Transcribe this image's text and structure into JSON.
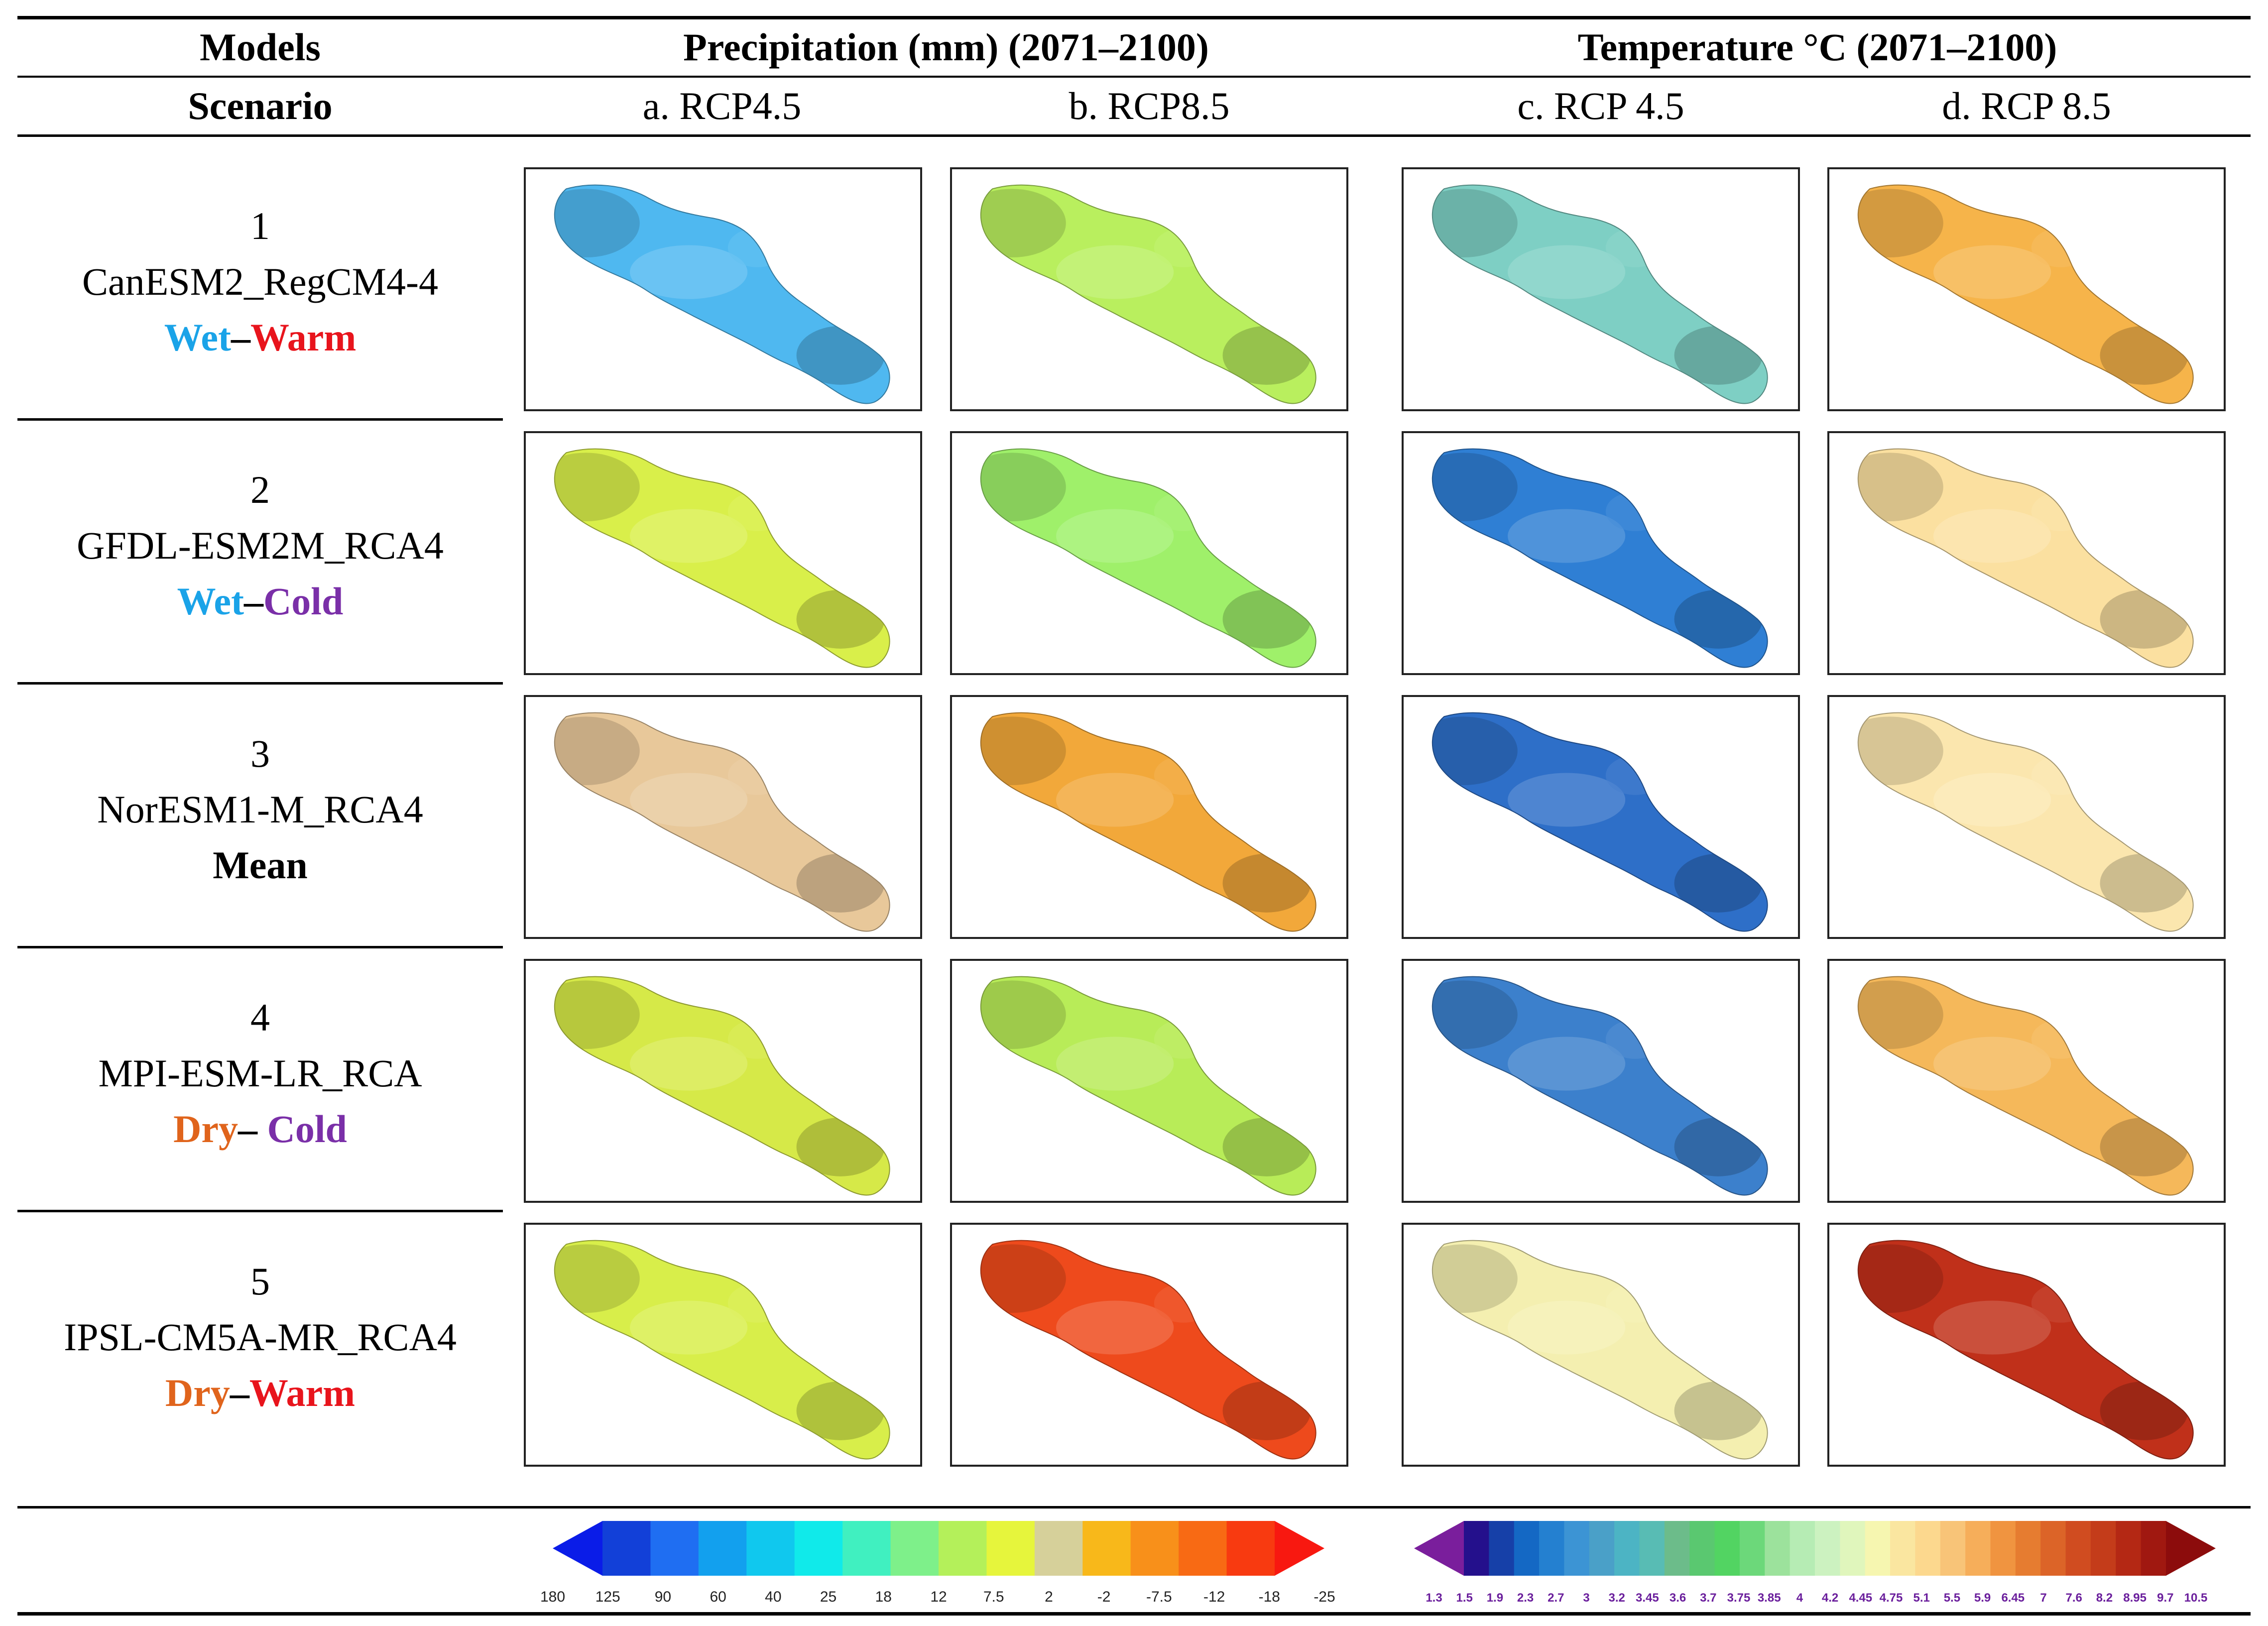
{
  "header": {
    "models_label": "Models",
    "scenario_label": "Scenario",
    "precip_title": "Precipitation (mm) (2071–2100)",
    "temp_title": "Temperature °C (2071–2100)",
    "columns": [
      "a. RCP4.5",
      "b. RCP8.5",
      "c. RCP 4.5",
      "d. RCP 8.5"
    ]
  },
  "rows": [
    {
      "number": "1",
      "model": "CanESM2_RegCM4-4",
      "scenario": [
        {
          "text": "Wet",
          "color": "#1aa3e8"
        },
        {
          "text": "–",
          "color": "#000000"
        },
        {
          "text": "Warm",
          "color": "#e8141c"
        }
      ]
    },
    {
      "number": "2",
      "model": "GFDL-ESM2M_RCA4",
      "scenario": [
        {
          "text": "Wet",
          "color": "#1aa3e8"
        },
        {
          "text": "–",
          "color": "#000000"
        },
        {
          "text": "Cold",
          "color": "#7a2fa8"
        }
      ]
    },
    {
      "number": "3",
      "model": "NorESM1-M_RCA4",
      "scenario": [
        {
          "text": "Mean",
          "color": "#000000"
        }
      ]
    },
    {
      "number": "4",
      "model": "MPI-ESM-LR_RCA",
      "scenario": [
        {
          "text": "Dry",
          "color": "#e0641c"
        },
        {
          "text": "– ",
          "color": "#000000"
        },
        {
          "text": "Cold",
          "color": "#7a2fa8"
        }
      ]
    },
    {
      "number": "5",
      "model": "IPSL-CM5A-MR_RCA4",
      "scenario": [
        {
          "text": "Dry",
          "color": "#e0641c"
        },
        {
          "text": "–",
          "color": "#000000"
        },
        {
          "text": "Warm",
          "color": "#e8141c"
        }
      ]
    }
  ],
  "maps": [
    [
      "#4fb8f0",
      "#b9ef5e",
      "#7ecfc4",
      "#f6b44a"
    ],
    [
      "#d9ef4a",
      "#9ff06a",
      "#2f7fd4",
      "#fbe0a0"
    ],
    [
      "#e8c89a",
      "#f2a83a",
      "#2e6fc8",
      "#fbe6ae"
    ],
    [
      "#d6e948",
      "#b8ec58",
      "#3c80cc",
      "#f5b85a"
    ],
    [
      "#d8ee4a",
      "#ee4a1c",
      "#f4efb0",
      "#c0301a"
    ]
  ],
  "precip_colorbar": {
    "colors": [
      "#0a1ce8",
      "#1240d8",
      "#1f6ef2",
      "#12a0ee",
      "#10c8ee",
      "#10eaea",
      "#40f0c0",
      "#7ef08a",
      "#b4f05a",
      "#e6f53c",
      "#d6d09a",
      "#f8b81a",
      "#f8901a",
      "#f86a14",
      "#f83a10",
      "#f81810"
    ],
    "ticks": [
      "180",
      "125",
      "90",
      "60",
      "40",
      "25",
      "18",
      "12",
      "7.5",
      "2",
      "-2",
      "-7.5",
      "-12",
      "-18",
      "-25"
    ]
  },
  "temp_colorbar": {
    "colors": [
      "#7a1e9c",
      "#24108c",
      "#1640a8",
      "#1468c4",
      "#2480d0",
      "#3c94d4",
      "#4aa0c8",
      "#4cb4c4",
      "#58bcb4",
      "#6cbc8a",
      "#5ac870",
      "#52d462",
      "#6cd87a",
      "#9ce29c",
      "#b6ecb4",
      "#ccf2c0",
      "#e0f6bc",
      "#f6f6b0",
      "#fae6a0",
      "#fcd88e",
      "#f8c478",
      "#f6ae5a",
      "#f09440",
      "#e67c30",
      "#dc6428",
      "#d04c20",
      "#c43c1a",
      "#b42814",
      "#a01810",
      "#8c0c0c"
    ],
    "ticks": [
      "1.3",
      "1.5",
      "1.9",
      "2.3",
      "2.7",
      "3",
      "3.2",
      "3.45",
      "3.6",
      "3.7",
      "3.75",
      "3.85",
      "4",
      "4.2",
      "4.45",
      "4.75",
      "5.1",
      "5.5",
      "5.9",
      "6.45",
      "7",
      "7.6",
      "8.2",
      "8.95",
      "9.7",
      "10.5"
    ]
  }
}
